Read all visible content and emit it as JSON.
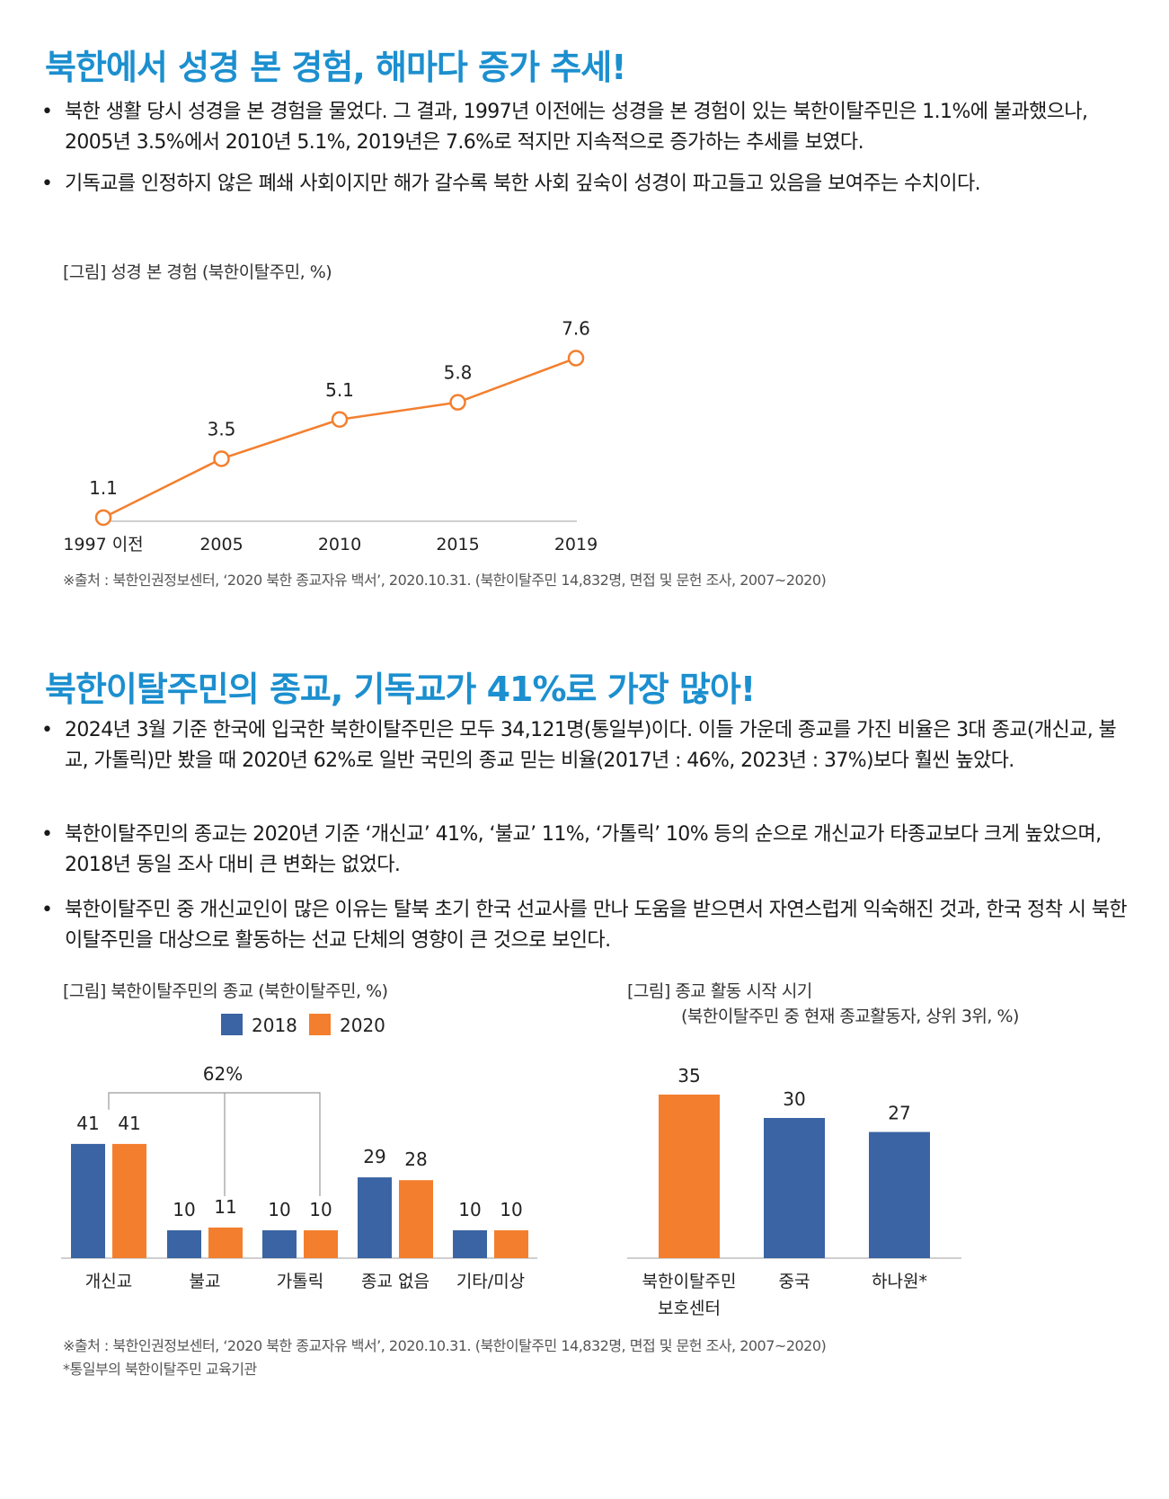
{
  "section1": {
    "title": "북한에서 성경 본 경험, 해마다 증가 추세!",
    "bullets": [
      "북한 생활 당시 성경을 본 경험을 물었다. 그 결과, 1997년 이전에는 성경을 본 경험이 있는 북한이탈주민은 1.1%에 불과했으나, 2005년 3.5%에서 2010년 5.1%, 2019년은 7.6%로 적지만 지속적으로 증가하는 추세를 보였다.",
      "기독교를 인정하지 않은 폐쇄 사회이지만 해가 갈수록 북한 사회 깊숙이 성경이 파고들고 있음을 보여주는 수치이다."
    ],
    "figure_caption": "[그림] 성경 본 경험 (북한이탈주민, %)",
    "source": "※출처 : 북한인권정보센터, ‘2020 북한 종교자유 백서’, 2020.10.31. (북한이탈주민 14,832명, 면접 및 문헌 조사, 2007~2020)"
  },
  "section2": {
    "title": "북한이탈주민의 종교, 기독교가 41%로 가장 많아!",
    "bullets": [
      "2024년 3월 기준 한국에 입국한 북한이탈주민은 모두 34,121명(통일부)이다. 이들 가운데 종교를 가진 비율은 3대 종교(개신교, 불교, 가톨릭)만 봤을 때 2020년 62%로 일반 국민의 종교 믿는 비율(2017년 : 46%, 2023년 : 37%)보다 훨씬 높았다.",
      "북한이탈주민의 종교는 2020년 기준 ‘개신교’ 41%, ‘불교’ 11%, ‘가톨릭’ 10% 등의 순으로 개신교가 타종교보다 크게 높았으며, 2018년 동일 조사 대비 큰 변화는 없었다.",
      "북한이탈주민 중 개신교인이 많은 이유는 탈북 초기 한국 선교사를 만나 도움을 받으면서 자연스럽게 익숙해진 것과, 한국 정착 시 북한이탈주민을 대상으로 활동하는 선교 단체의 영향이 큰 것으로 보인다."
    ],
    "figure1_caption": "[그림] 북한이탈주민의 종교 (북한이탈주민, %)",
    "figure2_caption_line1": "[그림] 종교 활동 시작 시기",
    "figure2_caption_line2": "(북한이탈주민 중 현재 종교활동자, 상위 3위, %)",
    "source": "※출처 : 북한인권정보센터, ‘2020 북한 종교자유 백서’, 2020.10.31. (북한이탈주민 14,832명, 면접 및 문헌 조사, 2007~2020)",
    "footnote": "*통일부의 북한이탈주민 교육기관"
  },
  "colors": {
    "title": "#1c8fcf",
    "line": "#f37f2e",
    "blue": "#3a64a3",
    "orange": "#f37f2e"
  },
  "chart_data": [
    {
      "type": "line",
      "categories": [
        "1997 이전",
        "2005",
        "2010",
        "2015",
        "2019"
      ],
      "values": [
        1.1,
        3.5,
        5.1,
        5.8,
        7.6
      ],
      "value_labels": [
        "1.1",
        "3.5",
        "5.1",
        "5.8",
        "7.6"
      ],
      "ylim": [
        0,
        8
      ]
    },
    {
      "type": "bar",
      "categories": [
        "개신교",
        "불교",
        "가톨릭",
        "종교 없음",
        "기타/미상"
      ],
      "series": [
        {
          "name": "2018",
          "values": [
            41,
            10,
            10,
            29,
            10
          ]
        },
        {
          "name": "2020",
          "values": [
            41,
            11,
            10,
            28,
            10
          ]
        }
      ],
      "annotation": "62%",
      "ylim": [
        0,
        45
      ]
    },
    {
      "type": "bar",
      "categories": [
        "북한이탈주민\n보호센터",
        "중국",
        "하나원*"
      ],
      "values": [
        35,
        30,
        27
      ],
      "highlight_index": 0,
      "ylim": [
        0,
        35
      ]
    }
  ]
}
